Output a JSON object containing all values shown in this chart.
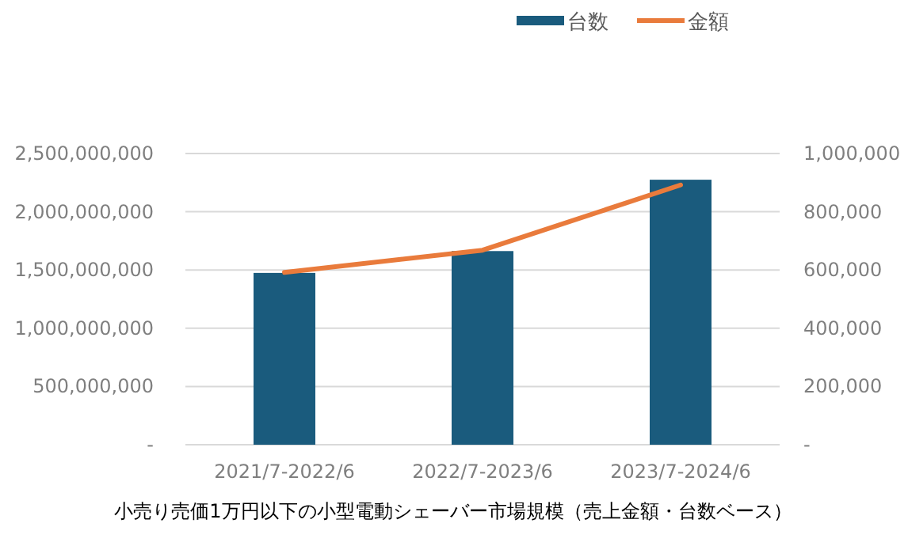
{
  "chart_data": {
    "type": "bar",
    "categories": [
      "2021/7-2022/6",
      "2022/7-2023/6",
      "2023/7-2024/6"
    ],
    "series": [
      {
        "name": "台数",
        "axis": "y2",
        "color": "#1a5b7d",
        "values": [
          590000,
          665000,
          910000
        ]
      },
      {
        "name": "金額",
        "type": "line",
        "color": "#e97b3c",
        "values": [
          1480000000,
          1670000000,
          2230000000
        ]
      }
    ],
    "ylim": [
      0,
      2500000000
    ],
    "yticks": [
      {
        "value": 0,
        "label": "-"
      },
      {
        "value": 500000000,
        "label": "500,000,000"
      },
      {
        "value": 1000000000,
        "label": "1,000,000,000"
      },
      {
        "value": 1500000000,
        "label": "1,500,000,000"
      },
      {
        "value": 2000000000,
        "label": "2,000,000,000"
      },
      {
        "value": 2500000000,
        "label": "2,500,000,000"
      }
    ],
    "y2lim": [
      0,
      1000000
    ],
    "y2ticks": [
      {
        "value": 0,
        "label": "-"
      },
      {
        "value": 200000,
        "label": "200,000"
      },
      {
        "value": 400000,
        "label": "400,000"
      },
      {
        "value": 600000,
        "label": "600,000"
      },
      {
        "value": 800000,
        "label": "800,000"
      },
      {
        "value": 1000000,
        "label": "1,000,000"
      }
    ],
    "grid": "y",
    "legend": "top",
    "marker": "none",
    "annotations": [
      "小売り売価1万円以下の小型電動シェーバー市場規模（売上金額・台数ベース）"
    ]
  }
}
